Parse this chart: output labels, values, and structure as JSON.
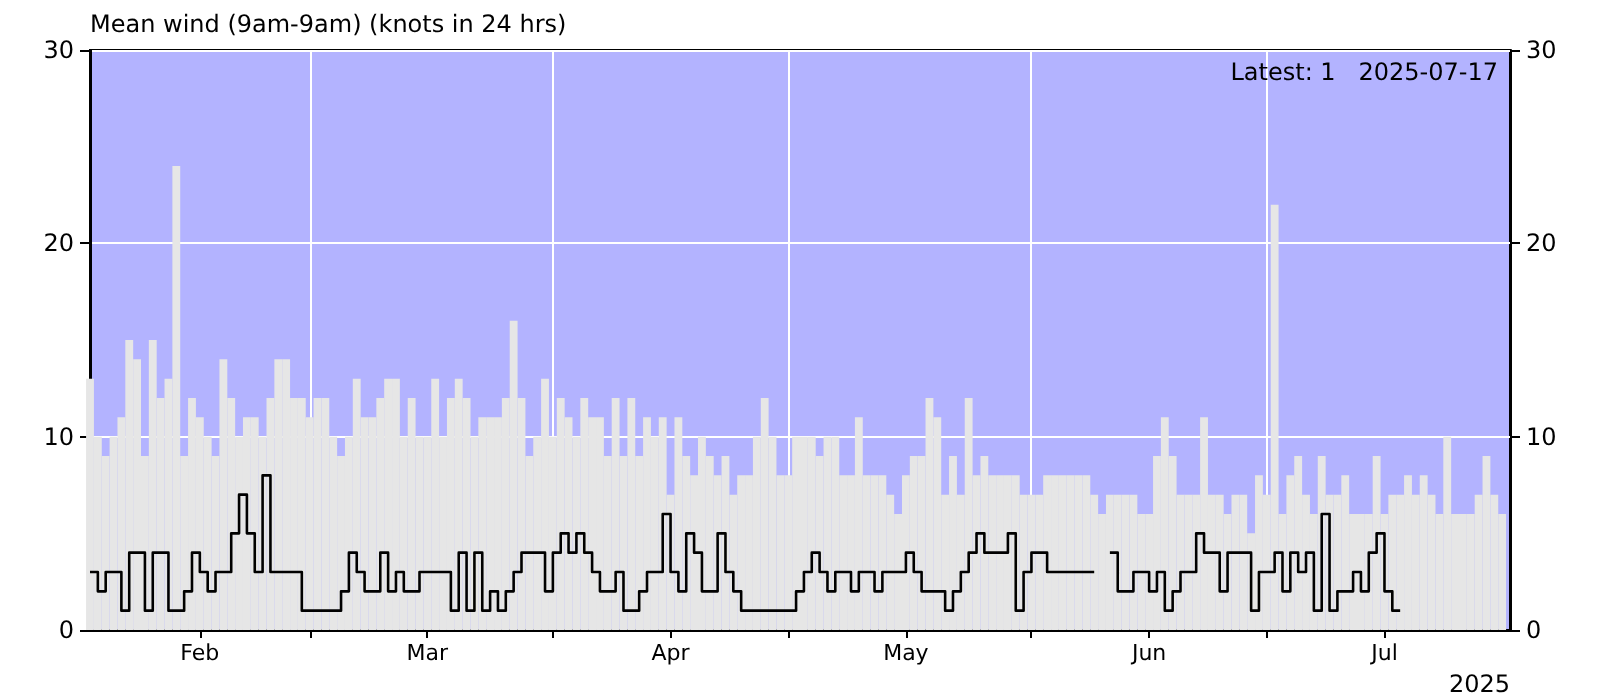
{
  "chart_data": {
    "type": "bar",
    "title": "Mean wind (9am-9am) (knots in 24 hrs)",
    "xlabel": "2025",
    "annotations": [
      "Latest: 1   2025-07-17"
    ],
    "x": [
      "2025-02-01",
      "2025-02-02",
      "2025-02-03",
      "2025-02-04",
      "2025-02-05",
      "2025-02-06",
      "2025-02-07",
      "2025-02-08",
      "2025-02-09",
      "2025-02-10",
      "2025-02-11",
      "2025-02-12",
      "2025-02-13",
      "2025-02-14",
      "2025-02-15",
      "2025-02-16",
      "2025-02-17",
      "2025-02-18",
      "2025-02-19",
      "2025-02-20",
      "2025-02-21",
      "2025-02-22",
      "2025-02-23",
      "2025-02-24",
      "2025-02-25",
      "2025-02-26",
      "2025-02-27",
      "2025-02-28",
      "2025-03-01",
      "2025-03-02",
      "2025-03-03",
      "2025-03-04",
      "2025-03-05",
      "2025-03-06",
      "2025-03-07",
      "2025-03-08",
      "2025-03-09",
      "2025-03-10",
      "2025-03-11",
      "2025-03-12",
      "2025-03-13",
      "2025-03-14",
      "2025-03-15",
      "2025-03-16",
      "2025-03-17",
      "2025-03-18",
      "2025-03-19",
      "2025-03-20",
      "2025-03-21",
      "2025-03-22",
      "2025-03-23",
      "2025-03-24",
      "2025-03-25",
      "2025-03-26",
      "2025-03-27",
      "2025-03-28",
      "2025-03-29",
      "2025-03-30",
      "2025-03-31",
      "2025-04-01",
      "2025-04-02",
      "2025-04-03",
      "2025-04-04",
      "2025-04-05",
      "2025-04-06",
      "2025-04-07",
      "2025-04-08",
      "2025-04-09",
      "2025-04-10",
      "2025-04-11",
      "2025-04-12",
      "2025-04-13",
      "2025-04-14",
      "2025-04-15",
      "2025-04-16",
      "2025-04-17",
      "2025-04-18",
      "2025-04-19",
      "2025-04-20",
      "2025-04-21",
      "2025-04-22",
      "2025-04-23",
      "2025-04-24",
      "2025-04-25",
      "2025-04-26",
      "2025-04-27",
      "2025-04-28",
      "2025-04-29",
      "2025-04-30",
      "2025-05-01",
      "2025-05-02",
      "2025-05-03",
      "2025-05-04",
      "2025-05-05",
      "2025-05-06",
      "2025-05-07",
      "2025-05-08",
      "2025-05-09",
      "2025-05-10",
      "2025-05-11",
      "2025-05-12",
      "2025-05-13",
      "2025-05-14",
      "2025-05-15",
      "2025-05-16",
      "2025-05-17",
      "2025-05-18",
      "2025-05-19",
      "2025-05-20",
      "2025-05-21",
      "2025-05-22",
      "2025-05-23",
      "2025-05-24",
      "2025-05-25",
      "2025-05-26",
      "2025-05-27",
      "2025-05-28",
      "2025-05-29",
      "2025-05-30",
      "2025-05-31",
      "2025-06-01",
      "2025-06-02",
      "2025-06-03",
      "2025-06-04",
      "2025-06-05",
      "2025-06-06",
      "2025-06-07",
      "2025-06-08",
      "2025-06-09",
      "2025-06-10",
      "2025-06-11",
      "2025-06-12",
      "2025-06-13",
      "2025-06-14",
      "2025-06-15",
      "2025-06-16",
      "2025-06-17",
      "2025-06-18",
      "2025-06-19",
      "2025-06-20",
      "2025-06-21",
      "2025-06-22",
      "2025-06-23",
      "2025-06-24",
      "2025-06-25",
      "2025-06-26",
      "2025-06-27",
      "2025-06-28",
      "2025-06-29",
      "2025-06-30",
      "2025-07-01",
      "2025-07-02",
      "2025-07-03",
      "2025-07-04",
      "2025-07-05",
      "2025-07-06",
      "2025-07-07",
      "2025-07-08",
      "2025-07-09",
      "2025-07-10",
      "2025-07-11",
      "2025-07-12",
      "2025-07-13",
      "2025-07-14",
      "2025-07-15",
      "2025-07-16",
      "2025-07-17",
      "2025-07-18",
      "2025-07-19",
      "2025-07-20",
      "2025-07-21",
      "2025-07-22",
      "2025-07-23",
      "2025-07-24",
      "2025-07-25",
      "2025-07-26",
      "2025-07-27",
      "2025-07-28",
      "2025-07-29",
      "2025-07-30",
      "2025-07-31"
    ],
    "series": [
      {
        "color": "#e6e6e6",
        "values": [
          13,
          10,
          9,
          10,
          11,
          15,
          14,
          9,
          15,
          12,
          13,
          24,
          9,
          12,
          11,
          10,
          9,
          14,
          12,
          10,
          11,
          11,
          10,
          12,
          14,
          14,
          12,
          12,
          11,
          12,
          12,
          10,
          9,
          10,
          13,
          11,
          11,
          12,
          13,
          13,
          10,
          12,
          10,
          10,
          13,
          10,
          12,
          13,
          12,
          10,
          11,
          11,
          11,
          12,
          16,
          12,
          9,
          10,
          13,
          10,
          12,
          11,
          10,
          12,
          11,
          11,
          9,
          12,
          9,
          12,
          9,
          11,
          10,
          11,
          7,
          11,
          9,
          8,
          10,
          9,
          8,
          9,
          7,
          8,
          8,
          10,
          12,
          10,
          8,
          8,
          10,
          10,
          10,
          9,
          10,
          10,
          8,
          8,
          11,
          8,
          8,
          8,
          7,
          6,
          8,
          9,
          9,
          12,
          11,
          7,
          9,
          7,
          12,
          8,
          9,
          8,
          8,
          8,
          8,
          7,
          7,
          7,
          8,
          8,
          8,
          8,
          8,
          8,
          7,
          6,
          7,
          7,
          7,
          7,
          6,
          6,
          9,
          11,
          9,
          7,
          7,
          7,
          11,
          7,
          7,
          6,
          7,
          7,
          5,
          8,
          7,
          22,
          6,
          8,
          9,
          7,
          6,
          9,
          7,
          7,
          8,
          6,
          6,
          6,
          9,
          6,
          7,
          7,
          8,
          7,
          8,
          7,
          6,
          10,
          6,
          6,
          6,
          7,
          9,
          7,
          6
        ]
      },
      {
        "type": "step",
        "color": "#000000",
        "values": [
          3,
          2,
          3,
          3,
          1,
          4,
          4,
          1,
          4,
          4,
          1,
          1,
          2,
          4,
          3,
          2,
          3,
          3,
          5,
          7,
          5,
          3,
          8,
          3,
          3,
          3,
          3,
          1,
          1,
          1,
          1,
          1,
          2,
          4,
          3,
          2,
          2,
          4,
          2,
          3,
          2,
          2,
          3,
          3,
          3,
          3,
          1,
          4,
          1,
          4,
          1,
          2,
          1,
          2,
          3,
          4,
          4,
          4,
          2,
          4,
          5,
          4,
          5,
          4,
          3,
          2,
          2,
          3,
          1,
          1,
          2,
          3,
          3,
          6,
          3,
          2,
          5,
          4,
          2,
          2,
          5,
          3,
          2,
          1,
          1,
          1,
          1,
          1,
          1,
          1,
          2,
          3,
          4,
          3,
          2,
          3,
          3,
          2,
          3,
          3,
          2,
          3,
          3,
          3,
          4,
          3,
          2,
          2,
          2,
          1,
          2,
          3,
          4,
          5,
          4,
          4,
          4,
          5,
          1,
          3,
          4,
          4,
          3,
          3,
          3,
          3,
          3,
          3,
          null,
          null,
          4,
          2,
          2,
          3,
          3,
          2,
          3,
          1,
          2,
          3,
          3,
          5,
          4,
          4,
          2,
          4,
          4,
          4,
          1,
          3,
          3,
          4,
          2,
          4,
          3,
          4,
          1,
          6,
          1,
          2,
          2,
          3,
          2,
          4,
          5,
          2,
          1,
          null,
          null,
          null,
          null,
          null,
          null,
          null,
          null,
          null,
          null,
          null,
          null,
          null,
          null
        ]
      }
    ],
    "xlim": [
      "2025-02-01",
      "2025-08-01"
    ],
    "xticks": [
      {
        "value": "2025-02-15",
        "label": "Feb"
      },
      {
        "value": "2025-03-01",
        "label": null
      },
      {
        "value": "2025-03-16",
        "label": "Mar"
      },
      {
        "value": "2025-04-01",
        "label": null
      },
      {
        "value": "2025-04-16",
        "label": "Apr"
      },
      {
        "value": "2025-05-01",
        "label": null
      },
      {
        "value": "2025-05-16",
        "label": "May"
      },
      {
        "value": "2025-06-01",
        "label": null
      },
      {
        "value": "2025-06-16",
        "label": "Jun"
      },
      {
        "value": "2025-07-01",
        "label": null
      },
      {
        "value": "2025-07-16",
        "label": "Jul"
      }
    ],
    "ylim": [
      0,
      30
    ],
    "yticks": [
      0,
      10,
      20,
      30
    ],
    "y2lim": [
      0,
      30
    ],
    "y2ticks": [
      0,
      10,
      20,
      30
    ],
    "grid": true
  }
}
